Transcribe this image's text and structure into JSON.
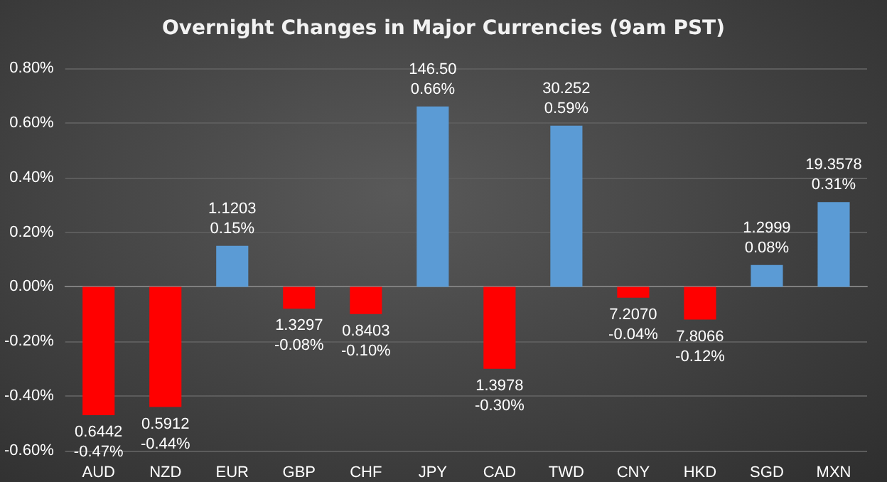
{
  "chart_data": {
    "type": "bar",
    "title": "Overnight Changes in Major Currencies (9am PST)",
    "categories": [
      "AUD",
      "NZD",
      "EUR",
      "GBP",
      "CHF",
      "JPY",
      "CAD",
      "TWD",
      "CNY",
      "HKD",
      "SGD",
      "MXN"
    ],
    "values": [
      -0.47,
      -0.44,
      0.15,
      -0.08,
      -0.1,
      0.66,
      -0.3,
      0.59,
      -0.04,
      -0.12,
      0.08,
      0.31
    ],
    "colors": [
      "#ff0000",
      "#ff0000",
      "#5b9bd5",
      "#ff0000",
      "#ff0000",
      "#5b9bd5",
      "#ff0000",
      "#5b9bd5",
      "#ff0000",
      "#ff0000",
      "#5b9bd5",
      "#5b9bd5"
    ],
    "value_labels": [
      "0.6442\n-0.47%",
      "0.5912\n-0.44%",
      "1.1203\n0.15%",
      "1.3297\n-0.08%",
      "0.8403\n-0.10%",
      "146.50\n0.66%",
      "1.3978\n-0.30%",
      "30.252\n0.59%",
      "7.2070\n-0.04%",
      "7.8066\n-0.12%",
      "1.2999\n0.08%",
      "19.3578\n0.31%"
    ],
    "ylim": [
      -0.6,
      0.8
    ],
    "yticks": [
      {
        "value": -0.6,
        "label": "-0.60%"
      },
      {
        "value": -0.4,
        "label": "-0.40%"
      },
      {
        "value": -0.2,
        "label": "-0.20%"
      },
      {
        "value": 0,
        "label": "0.00%"
      },
      {
        "value": 0.2,
        "label": "0.20%"
      },
      {
        "value": 0.4,
        "label": "0.40%"
      },
      {
        "value": 0.6,
        "label": "0.60%"
      },
      {
        "value": 0.8,
        "label": "0.80%"
      }
    ],
    "grid": "y"
  }
}
